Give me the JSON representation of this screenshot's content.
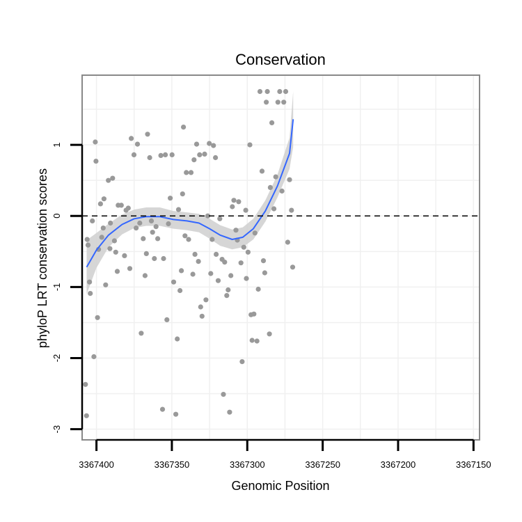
{
  "chart_data": {
    "type": "scatter",
    "title": "Conservation",
    "xlabel": "Genomic Position",
    "ylabel": "phyloP LRT conservation scores",
    "x_reversed": true,
    "xlim": [
      3367409.5,
      3367146
    ],
    "ylim": [
      -3.15,
      1.98
    ],
    "x_ticks": [
      3367400,
      3367350,
      3367300,
      3367250,
      3367200,
      3367150
    ],
    "x_tick_labels": [
      "3367400",
      "3367350",
      "3367300",
      "3367250",
      "3367200",
      "3367150"
    ],
    "y_ticks": [
      -3,
      -2,
      -1,
      0,
      1
    ],
    "y_tick_labels": [
      "-3",
      "-2",
      "-1",
      "0",
      "1"
    ],
    "reference_line": {
      "y": 0,
      "style": "dashed",
      "color": "#000000"
    },
    "colors": {
      "points": "#999999",
      "smooth": "#3366ff",
      "band": "#cfcfcf",
      "grid": "#f0f0f0",
      "frame": "#888888"
    },
    "points": [
      {
        "x": 3367407.3,
        "y": -2.37
      },
      {
        "x": 3367406.6,
        "y": -2.81
      },
      {
        "x": 3367406.2,
        "y": -0.33
      },
      {
        "x": 3367405.6,
        "y": -0.41
      },
      {
        "x": 3367404.6,
        "y": -0.93
      },
      {
        "x": 3367404.1,
        "y": -1.09
      },
      {
        "x": 3367402.7,
        "y": -0.07
      },
      {
        "x": 3367401.7,
        "y": -1.98
      },
      {
        "x": 3367400.8,
        "y": 1.04
      },
      {
        "x": 3367400.3,
        "y": 0.77
      },
      {
        "x": 3367399.3,
        "y": -1.43
      },
      {
        "x": 3367398.6,
        "y": -0.47
      },
      {
        "x": 3367397.3,
        "y": 0.17
      },
      {
        "x": 3367396.5,
        "y": -0.3
      },
      {
        "x": 3367395.5,
        "y": -0.17
      },
      {
        "x": 3367395.0,
        "y": 0.24
      },
      {
        "x": 3367393.9,
        "y": -0.97
      },
      {
        "x": 3367392.1,
        "y": 0.5
      },
      {
        "x": 3367391.1,
        "y": -0.46
      },
      {
        "x": 3367390.7,
        "y": -0.1
      },
      {
        "x": 3367389.3,
        "y": 0.53
      },
      {
        "x": 3367388.1,
        "y": -0.35
      },
      {
        "x": 3367387.2,
        "y": -0.51
      },
      {
        "x": 3367386.2,
        "y": -0.78
      },
      {
        "x": 3367385.6,
        "y": 0.15
      },
      {
        "x": 3367383.5,
        "y": 0.15
      },
      {
        "x": 3367381.4,
        "y": -0.56
      },
      {
        "x": 3367380.4,
        "y": 0.08
      },
      {
        "x": 3367378.9,
        "y": 0.11
      },
      {
        "x": 3367377.9,
        "y": -0.74
      },
      {
        "x": 3367376.9,
        "y": 1.09
      },
      {
        "x": 3367375.1,
        "y": 0.86
      },
      {
        "x": 3367373.7,
        "y": -0.17
      },
      {
        "x": 3367372.8,
        "y": 1.01
      },
      {
        "x": 3367371.3,
        "y": -0.1
      },
      {
        "x": 3367370.3,
        "y": -1.65
      },
      {
        "x": 3367369.0,
        "y": -0.32
      },
      {
        "x": 3367367.8,
        "y": -0.84
      },
      {
        "x": 3367366.9,
        "y": -0.53
      },
      {
        "x": 3367366.1,
        "y": 1.15
      },
      {
        "x": 3367364.7,
        "y": 0.82
      },
      {
        "x": 3367363.6,
        "y": -0.07
      },
      {
        "x": 3367362.8,
        "y": -0.23
      },
      {
        "x": 3367361.6,
        "y": -0.6
      },
      {
        "x": 3367360.5,
        "y": -0.15
      },
      {
        "x": 3367359.4,
        "y": -0.32
      },
      {
        "x": 3367357.3,
        "y": 0.85
      },
      {
        "x": 3367356.2,
        "y": -2.72
      },
      {
        "x": 3367355.5,
        "y": -0.6
      },
      {
        "x": 3367354.3,
        "y": 0.86
      },
      {
        "x": 3367353.3,
        "y": -1.46
      },
      {
        "x": 3367352.3,
        "y": -0.11
      },
      {
        "x": 3367351.1,
        "y": 0.25
      },
      {
        "x": 3367349.9,
        "y": 0.86
      },
      {
        "x": 3367348.8,
        "y": -0.93
      },
      {
        "x": 3367347.4,
        "y": -2.79
      },
      {
        "x": 3367346.4,
        "y": -1.73
      },
      {
        "x": 3367345.6,
        "y": 0.09
      },
      {
        "x": 3367344.6,
        "y": -1.05
      },
      {
        "x": 3367343.7,
        "y": -0.77
      },
      {
        "x": 3367342.9,
        "y": 0.31
      },
      {
        "x": 3367342.3,
        "y": 1.25
      },
      {
        "x": 3367341.3,
        "y": -0.28
      },
      {
        "x": 3367340.4,
        "y": 0.61
      },
      {
        "x": 3367338.9,
        "y": -0.33
      },
      {
        "x": 3367337.3,
        "y": 0.61
      },
      {
        "x": 3367336.1,
        "y": -0.82
      },
      {
        "x": 3367335.3,
        "y": 0.79
      },
      {
        "x": 3367334.7,
        "y": -0.54
      },
      {
        "x": 3367333.6,
        "y": 1.01
      },
      {
        "x": 3367332.4,
        "y": -0.64
      },
      {
        "x": 3367331.6,
        "y": 0.86
      },
      {
        "x": 3367330.9,
        "y": -1.28
      },
      {
        "x": 3367330.0,
        "y": -1.41
      },
      {
        "x": 3367328.3,
        "y": 0.87
      },
      {
        "x": 3367327.4,
        "y": -1.18
      },
      {
        "x": 3367326.2,
        "y": 0.0
      },
      {
        "x": 3367325.2,
        "y": 1.02
      },
      {
        "x": 3367324.2,
        "y": -0.81
      },
      {
        "x": 3367323.3,
        "y": -0.33
      },
      {
        "x": 3367322.4,
        "y": 0.99
      },
      {
        "x": 3367321.1,
        "y": 0.82
      },
      {
        "x": 3367320.6,
        "y": -0.54
      },
      {
        "x": 3367319.3,
        "y": -0.91
      },
      {
        "x": 3367318.2,
        "y": -0.04
      },
      {
        "x": 3367316.7,
        "y": -0.61
      },
      {
        "x": 3367315.8,
        "y": -2.51
      },
      {
        "x": 3367315.0,
        "y": -0.65
      },
      {
        "x": 3367313.6,
        "y": -1.12
      },
      {
        "x": 3367312.7,
        "y": -1.04
      },
      {
        "x": 3367311.7,
        "y": -2.76
      },
      {
        "x": 3367310.9,
        "y": -0.84
      },
      {
        "x": 3367309.9,
        "y": 0.13
      },
      {
        "x": 3367308.9,
        "y": 0.22
      },
      {
        "x": 3367307.5,
        "y": -0.2
      },
      {
        "x": 3367306.6,
        "y": -0.34
      },
      {
        "x": 3367305.7,
        "y": 0.2
      },
      {
        "x": 3367304.2,
        "y": -0.66
      },
      {
        "x": 3367303.4,
        "y": -2.05
      },
      {
        "x": 3367302.3,
        "y": -0.44
      },
      {
        "x": 3367301.0,
        "y": 0.08
      },
      {
        "x": 3367300.6,
        "y": -0.88
      },
      {
        "x": 3367299.5,
        "y": -0.51
      },
      {
        "x": 3367298.3,
        "y": 1.0
      },
      {
        "x": 3367297.5,
        "y": -1.39
      },
      {
        "x": 3367296.8,
        "y": -1.75
      },
      {
        "x": 3367295.6,
        "y": -1.38
      },
      {
        "x": 3367294.9,
        "y": -0.24
      },
      {
        "x": 3367293.6,
        "y": -1.76
      },
      {
        "x": 3367292.7,
        "y": -1.03
      },
      {
        "x": 3367291.6,
        "y": 1.75
      },
      {
        "x": 3367290.2,
        "y": 0.63
      },
      {
        "x": 3367289.3,
        "y": -0.63
      },
      {
        "x": 3367288.4,
        "y": -0.8
      },
      {
        "x": 3367287.4,
        "y": 1.6
      },
      {
        "x": 3367286.7,
        "y": 1.75
      },
      {
        "x": 3367285.3,
        "y": -1.66
      },
      {
        "x": 3367284.7,
        "y": 0.4
      },
      {
        "x": 3367283.7,
        "y": 1.31
      },
      {
        "x": 3367282.3,
        "y": 0.1
      },
      {
        "x": 3367281.1,
        "y": 0.55
      },
      {
        "x": 3367279.7,
        "y": 1.6
      },
      {
        "x": 3367278.5,
        "y": 1.75
      },
      {
        "x": 3367277.0,
        "y": 0.35
      },
      {
        "x": 3367275.8,
        "y": 1.6
      },
      {
        "x": 3367274.5,
        "y": 1.75
      },
      {
        "x": 3367273.2,
        "y": -0.37
      },
      {
        "x": 3367272.0,
        "y": 0.51
      },
      {
        "x": 3367270.7,
        "y": 0.08
      },
      {
        "x": 3367269.9,
        "y": -0.72
      }
    ],
    "smooth": [
      {
        "x": 3367406.5,
        "y": -0.72,
        "lo": -1.1,
        "hi": -0.34
      },
      {
        "x": 3367400,
        "y": -0.48,
        "lo": -0.73,
        "hi": -0.24
      },
      {
        "x": 3367392,
        "y": -0.27,
        "lo": -0.44,
        "hi": -0.11
      },
      {
        "x": 3367383,
        "y": -0.12,
        "lo": -0.26,
        "hi": 0.02
      },
      {
        "x": 3367375,
        "y": -0.04,
        "lo": -0.17,
        "hi": 0.09
      },
      {
        "x": 3367367,
        "y": -0.01,
        "lo": -0.14,
        "hi": 0.12
      },
      {
        "x": 3367358,
        "y": -0.01,
        "lo": -0.14,
        "hi": 0.12
      },
      {
        "x": 3367349,
        "y": -0.05,
        "lo": -0.18,
        "hi": 0.07
      },
      {
        "x": 3367340,
        "y": -0.07,
        "lo": -0.2,
        "hi": 0.05
      },
      {
        "x": 3367332,
        "y": -0.1,
        "lo": -0.23,
        "hi": 0.03
      },
      {
        "x": 3367325,
        "y": -0.18,
        "lo": -0.32,
        "hi": -0.04
      },
      {
        "x": 3367318,
        "y": -0.27,
        "lo": -0.42,
        "hi": -0.13
      },
      {
        "x": 3367310,
        "y": -0.33,
        "lo": -0.47,
        "hi": -0.19
      },
      {
        "x": 3367303,
        "y": -0.3,
        "lo": -0.44,
        "hi": -0.16
      },
      {
        "x": 3367296,
        "y": -0.18,
        "lo": -0.33,
        "hi": -0.04
      },
      {
        "x": 3367288,
        "y": 0.07,
        "lo": -0.08,
        "hi": 0.22
      },
      {
        "x": 3367280,
        "y": 0.42,
        "lo": 0.26,
        "hi": 0.58
      },
      {
        "x": 3367272,
        "y": 0.88,
        "lo": 0.66,
        "hi": 1.1
      },
      {
        "x": 3367269.6,
        "y": 1.36,
        "lo": 0.97,
        "hi": 1.75
      }
    ]
  }
}
